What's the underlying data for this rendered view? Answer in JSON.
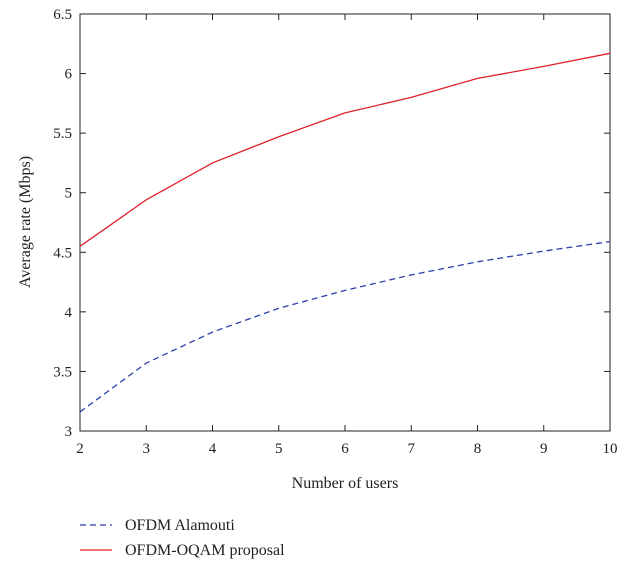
{
  "chart_data": {
    "type": "line",
    "x": [
      2,
      3,
      4,
      5,
      6,
      7,
      8,
      9,
      10
    ],
    "series": [
      {
        "name": "OFDM Alamouti",
        "values": [
          3.16,
          3.57,
          3.83,
          4.03,
          4.18,
          4.31,
          4.42,
          4.51,
          4.59
        ],
        "color": "#2b3fa8",
        "style": "dashed"
      },
      {
        "name": "OFDM-OQAM proposal",
        "values": [
          4.55,
          4.94,
          5.25,
          5.47,
          5.67,
          5.8,
          5.96,
          6.06,
          6.17
        ],
        "color": "#e0202a",
        "style": "solid"
      }
    ],
    "xlabel": "Number of users",
    "ylabel": "Average rate (Mbps)",
    "xlim": [
      2,
      10
    ],
    "ylim": [
      3,
      6.5
    ],
    "xticks": [
      "2",
      "3",
      "4",
      "5",
      "6",
      "7",
      "8",
      "9",
      "10"
    ],
    "yticks": [
      "3",
      "3.5",
      "4",
      "4.5",
      "5",
      "5.5",
      "6",
      "6.5"
    ],
    "grid": false,
    "legend_position": "below"
  }
}
